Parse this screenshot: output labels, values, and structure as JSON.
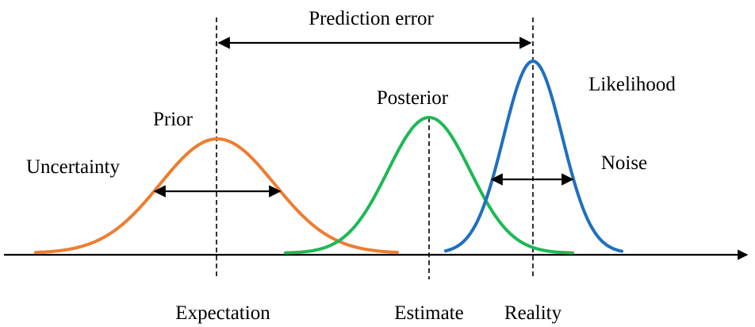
{
  "labels": {
    "prediction_error": "Prediction error",
    "prior": "Prior",
    "posterior": "Posterior",
    "likelihood": "Likelihood",
    "uncertainty": "Uncertainty",
    "noise": "Noise",
    "expectation": "Expectation",
    "estimate": "Estimate",
    "reality": "Reality"
  },
  "colors": {
    "prior": "#ED7D31",
    "posterior": "#1DB954",
    "likelihood": "#1F6FC0",
    "axis": "#000000"
  }
}
